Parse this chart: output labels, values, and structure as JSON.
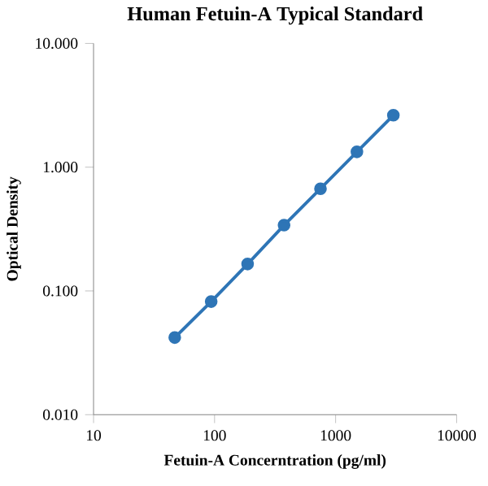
{
  "chart_data": {
    "type": "line",
    "title": "Human Fetuin-A Typical Standard",
    "xlabel": "Fetuin-A Concerntration (pg/ml)",
    "ylabel": "Optical Density",
    "x": [
      46.88,
      93.75,
      187.5,
      375,
      750,
      1500,
      3000
    ],
    "series": [
      {
        "color": "#2e75b6",
        "values": [
          0.042,
          0.082,
          0.165,
          0.34,
          0.67,
          1.33,
          2.63
        ]
      }
    ],
    "log": "xy",
    "xlim": [
      10,
      10000
    ],
    "ylim": [
      0.01,
      10
    ],
    "xticks": [
      10,
      100,
      1000,
      10000
    ],
    "yticks": [
      {
        "value": 0.01,
        "label": "0.010"
      },
      {
        "value": 0.1,
        "label": "0.100"
      },
      {
        "value": 1,
        "label": "1.000"
      },
      {
        "value": 10,
        "label": "10.000"
      }
    ],
    "marker": "circle",
    "line_style": "solid",
    "grid": false
  }
}
